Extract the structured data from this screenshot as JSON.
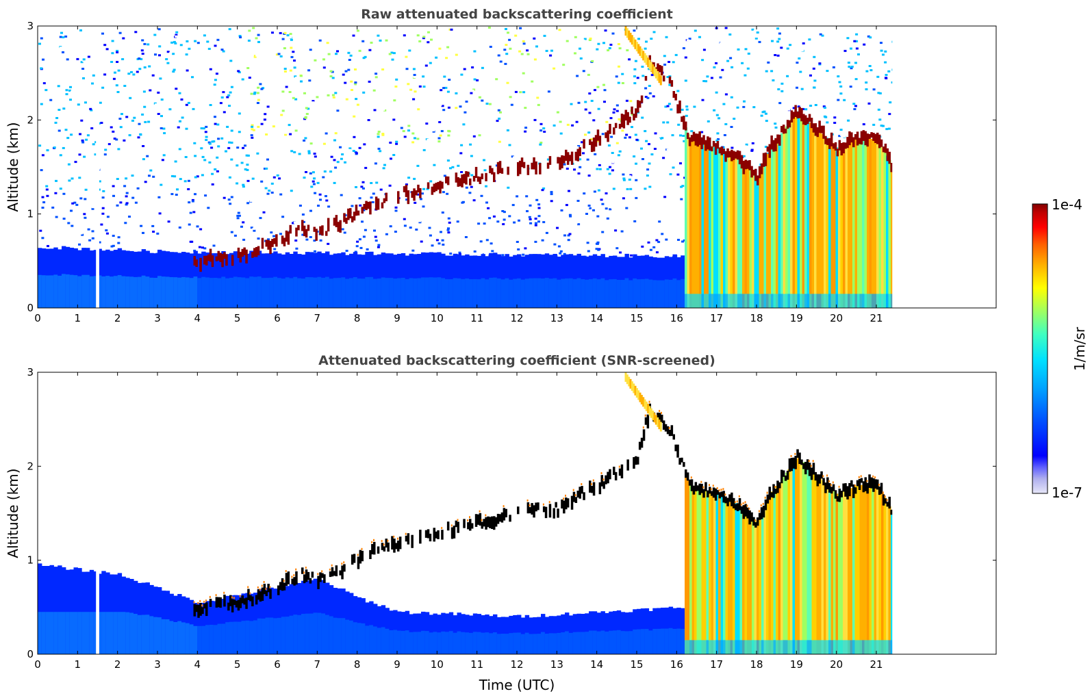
{
  "chart_data": [
    {
      "type": "heatmap",
      "title": "Raw attenuated backscattering coefficient",
      "xlabel": "",
      "ylabel": "Altitude (km)",
      "xlim": [
        0,
        24
      ],
      "ylim": [
        0,
        3
      ],
      "x_ticks": [
        "0",
        "1",
        "2",
        "3",
        "4",
        "5",
        "6",
        "7",
        "8",
        "9",
        "10",
        "11",
        "12",
        "13",
        "14",
        "15",
        "16",
        "17",
        "18",
        "19",
        "20",
        "21"
      ],
      "y_ticks": [
        "0",
        "1",
        "2",
        "3"
      ],
      "data_time_range": [
        0,
        21.4
      ],
      "data_gap_time": 1.5,
      "screened": false,
      "features": {
        "near_surface_layer_top_km": [
          [
            0,
            0.65
          ],
          [
            3,
            0.6
          ],
          [
            16.2,
            0.55
          ]
        ],
        "cloud_layer": [
          [
            3.9,
            0.5
          ],
          [
            5,
            0.55
          ],
          [
            6,
            0.7
          ],
          [
            6.5,
            0.85
          ],
          [
            7,
            0.8
          ],
          [
            8,
            1.0
          ],
          [
            9,
            1.2
          ],
          [
            10,
            1.3
          ],
          [
            11,
            1.4
          ],
          [
            12,
            1.5
          ],
          [
            13,
            1.55
          ],
          [
            14,
            1.8
          ],
          [
            15,
            2.1
          ],
          [
            15.3,
            2.6
          ],
          [
            15.8,
            2.4
          ],
          [
            16.3,
            1.8
          ],
          [
            17,
            1.7
          ],
          [
            17.5,
            1.6
          ],
          [
            18,
            1.4
          ],
          [
            18.3,
            1.7
          ],
          [
            18.5,
            1.8
          ],
          [
            19,
            2.1
          ],
          [
            19.5,
            1.9
          ],
          [
            20,
            1.7
          ],
          [
            20.5,
            1.8
          ],
          [
            21,
            1.8
          ],
          [
            21.4,
            1.5
          ]
        ],
        "strong_backscatter_columns_start": 16.2
      }
    },
    {
      "type": "heatmap",
      "title": "Attenuated backscattering coefficient (SNR-screened)",
      "xlabel": "Time (UTC)",
      "ylabel": "Altitude (km)",
      "xlim": [
        0,
        24
      ],
      "ylim": [
        0,
        3
      ],
      "x_ticks": [
        "0",
        "1",
        "2",
        "3",
        "4",
        "5",
        "6",
        "7",
        "8",
        "9",
        "10",
        "11",
        "12",
        "13",
        "14",
        "15",
        "16",
        "17",
        "18",
        "19",
        "20",
        "21"
      ],
      "y_ticks": [
        "0",
        "1",
        "2",
        "3"
      ],
      "data_time_range": [
        0,
        21.4
      ],
      "data_gap_time": 1.5,
      "screened": true,
      "features": {
        "screened_layer_top_km": [
          [
            0,
            0.95
          ],
          [
            2,
            0.85
          ],
          [
            3,
            0.7
          ],
          [
            4,
            0.55
          ],
          [
            7,
            0.8
          ],
          [
            8,
            0.6
          ],
          [
            9,
            0.45
          ],
          [
            12,
            0.4
          ],
          [
            16.2,
            0.5
          ]
        ],
        "cloud_layer": [
          [
            3.9,
            0.5
          ],
          [
            5,
            0.55
          ],
          [
            6,
            0.7
          ],
          [
            6.5,
            0.85
          ],
          [
            7,
            0.8
          ],
          [
            8,
            1.0
          ],
          [
            9,
            1.2
          ],
          [
            10,
            1.3
          ],
          [
            11,
            1.4
          ],
          [
            12,
            1.5
          ],
          [
            13,
            1.55
          ],
          [
            14,
            1.8
          ],
          [
            15,
            2.1
          ],
          [
            15.3,
            2.6
          ],
          [
            15.8,
            2.4
          ],
          [
            16.3,
            1.8
          ],
          [
            17,
            1.7
          ],
          [
            17.5,
            1.6
          ],
          [
            18,
            1.4
          ],
          [
            18.3,
            1.7
          ],
          [
            18.5,
            1.8
          ],
          [
            19,
            2.1
          ],
          [
            19.5,
            1.9
          ],
          [
            20,
            1.7
          ],
          [
            20.5,
            1.8
          ],
          [
            21,
            1.8
          ],
          [
            21.4,
            1.5
          ]
        ],
        "strong_backscatter_columns_start": 16.2
      }
    }
  ],
  "colorbar": {
    "label": "1/m/sr",
    "max_label": "1e-4",
    "min_label": "1e-7",
    "scale": "log",
    "colormap": "jet",
    "colors": [
      "#e6e6f8",
      "#b0b0ee",
      "#6060ff",
      "#0000ff",
      "#0050ff",
      "#00a0ff",
      "#00e0ff",
      "#40ffc0",
      "#a0ff60",
      "#ffff00",
      "#ffb000",
      "#ff6000",
      "#ff0000",
      "#c00000",
      "#800000"
    ]
  }
}
